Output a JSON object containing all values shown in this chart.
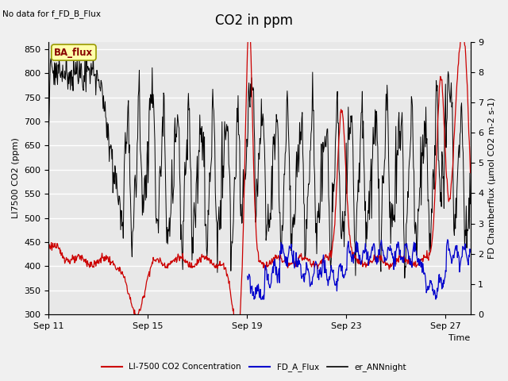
{
  "title": "CO2 in ppm",
  "top_left_text": "No data for f_FD_B_Flux",
  "ylabel_left": "LI7500 CO2 (ppm)",
  "ylabel_right": "FD Chamberflux (μmol CO2 m-2 s-1)",
  "xlabel": "Time",
  "ylim_left": [
    300,
    865
  ],
  "ylim_right": [
    0.0,
    9.0
  ],
  "yticks_left": [
    300,
    350,
    400,
    450,
    500,
    550,
    600,
    650,
    700,
    750,
    800,
    850
  ],
  "yticks_right": [
    0.0,
    1.0,
    2.0,
    3.0,
    4.0,
    5.0,
    6.0,
    7.0,
    8.0,
    9.0
  ],
  "xtick_labels": [
    "Sep 11",
    "Sep 15",
    "Sep 19",
    "Sep 23",
    "Sep 27"
  ],
  "xtick_positions": [
    0,
    4,
    8,
    12,
    16
  ],
  "xlim": [
    0,
    17
  ],
  "bg_color": "#f0f0f0",
  "plot_bg_color": "#e8e8e8",
  "legend_items": [
    {
      "label": "LI-7500 CO2 Concentration",
      "color": "#cc0000"
    },
    {
      "label": "FD_A_Flux",
      "color": "#0000cc"
    },
    {
      "label": "er_ANNnight",
      "color": "#000000"
    }
  ],
  "ba_flux_box": {
    "text": "BA_flux",
    "facecolor": "#ffffaa",
    "edgecolor": "#999900",
    "text_color": "#880000"
  },
  "title_fontsize": 12,
  "axis_fontsize": 8,
  "tick_fontsize": 8,
  "co2_color": "#cc0000",
  "fd_color": "#0000cc",
  "er_color": "#000000",
  "grid_color": "#ffffff"
}
